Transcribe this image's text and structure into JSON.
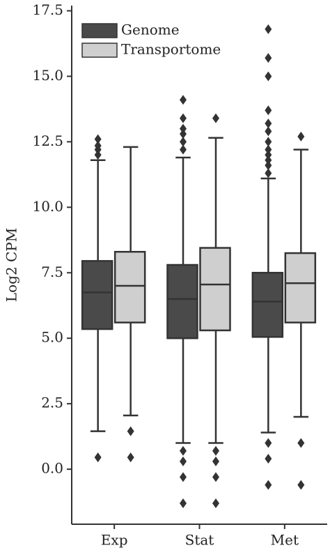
{
  "chart_data": {
    "type": "box",
    "y_label": "Log2 CPM",
    "categories": [
      "Exp",
      "Stat",
      "Met"
    ],
    "ylim": [
      -2.1,
      17.7
    ],
    "yticks": [
      {
        "value": 0,
        "label": "0.0"
      },
      2.5,
      {
        "value": 5,
        "label": "5.0"
      },
      7.5,
      {
        "value": 10,
        "label": "10.0"
      },
      12.5,
      {
        "value": 15,
        "label": "15.0"
      },
      17.5
    ],
    "legend_position": "upper left",
    "series": [
      {
        "name": "Genome",
        "color": "#4a4a4a",
        "low": [
          1.45,
          1.0,
          1.4
        ],
        "q1": [
          5.35,
          5.0,
          5.05
        ],
        "median": [
          6.75,
          6.5,
          6.4
        ],
        "q3": [
          7.95,
          7.8,
          7.5
        ],
        "high": [
          11.8,
          11.9,
          11.1
        ],
        "outliers": [
          [
            0.45,
            12.0,
            12.2,
            12.35,
            12.6
          ],
          [
            0.7,
            0.3,
            -0.3,
            -1.3,
            12.2,
            12.5,
            12.8,
            13.0,
            13.4,
            14.1
          ],
          [
            1.0,
            0.4,
            -0.6,
            11.3,
            11.6,
            11.8,
            12.0,
            12.2,
            12.5,
            12.9,
            13.2,
            13.7,
            15.0,
            15.7,
            16.8
          ]
        ]
      },
      {
        "name": "Transportome",
        "color": "#cfcfcf",
        "low": [
          2.05,
          1.0,
          2.0
        ],
        "q1": [
          5.6,
          5.3,
          5.6
        ],
        "median": [
          7.0,
          7.05,
          7.1
        ],
        "q3": [
          8.3,
          8.45,
          8.25
        ],
        "high": [
          12.3,
          12.65,
          12.2
        ],
        "outliers": [
          [
            1.45,
            0.45
          ],
          [
            0.7,
            0.3,
            -0.3,
            -1.3,
            13.4
          ],
          [
            1.0,
            -0.6,
            12.7
          ]
        ]
      }
    ]
  }
}
